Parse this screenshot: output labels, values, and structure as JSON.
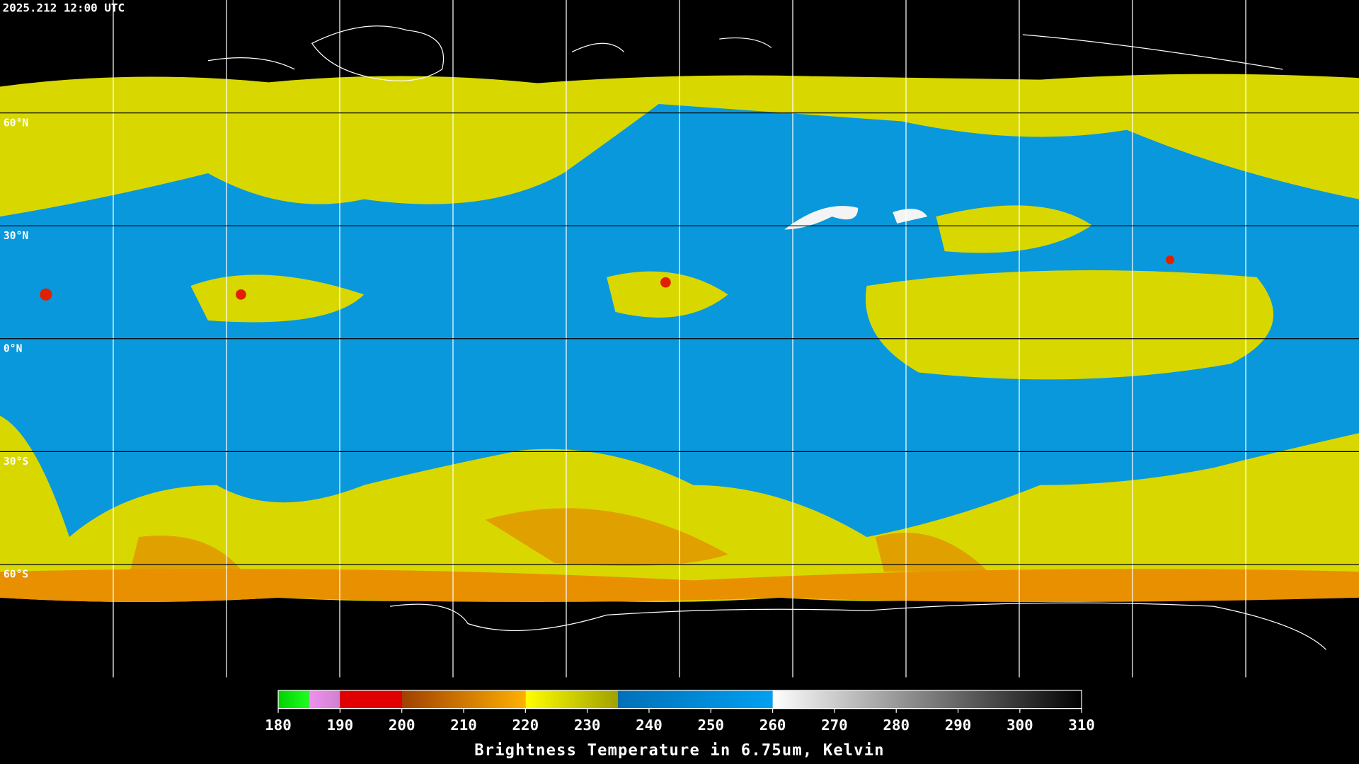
{
  "header": {
    "timestamp": "2025.212 12:00 UTC"
  },
  "map": {
    "latitudes": [
      {
        "value": 60,
        "label": "60°N"
      },
      {
        "value": 30,
        "label": "30°N"
      },
      {
        "value": 0,
        "label": "0°N"
      },
      {
        "value": -30,
        "label": "30°S"
      },
      {
        "value": -60,
        "label": "60°S"
      }
    ]
  },
  "colorbar": {
    "title": "Brightness Temperature in 6.75um, Kelvin",
    "range": [
      180,
      310
    ],
    "ticks": [
      180,
      190,
      200,
      210,
      220,
      230,
      240,
      250,
      260,
      270,
      280,
      290,
      300,
      310
    ],
    "segments": [
      {
        "from": 180,
        "to": 185,
        "colors": [
          "#00d000",
          "#20ff20"
        ]
      },
      {
        "from": 185,
        "to": 190,
        "colors": [
          "#f090f0",
          "#d080d0"
        ]
      },
      {
        "from": 190,
        "to": 200,
        "colors": [
          "#e00000",
          "#e00000"
        ]
      },
      {
        "from": 200,
        "to": 220,
        "colors": [
          "#a04000",
          "#ffb000"
        ]
      },
      {
        "from": 220,
        "to": 235,
        "colors": [
          "#ffff00",
          "#a0a000"
        ]
      },
      {
        "from": 235,
        "to": 260,
        "colors": [
          "#0070b8",
          "#00a0f0"
        ]
      },
      {
        "from": 260,
        "to": 310,
        "colors": [
          "#ffffff",
          "#000000"
        ]
      }
    ]
  }
}
